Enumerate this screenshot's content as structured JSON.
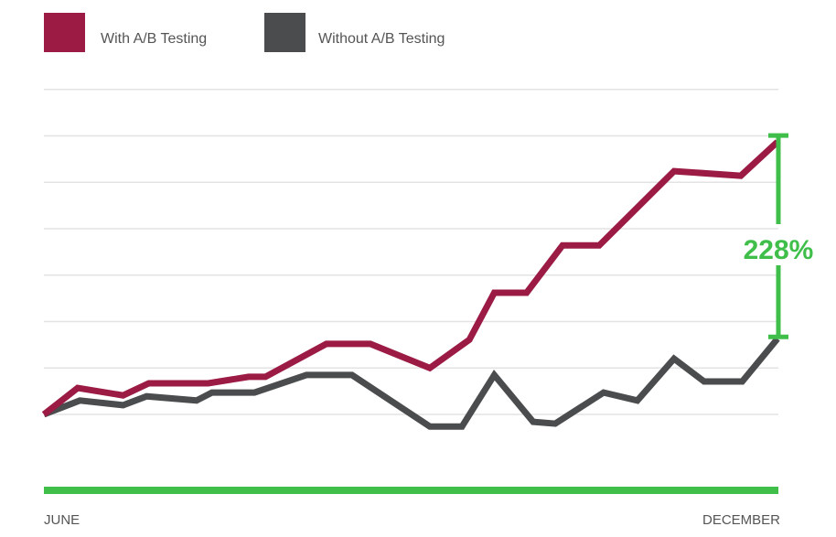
{
  "chart_data": {
    "type": "line",
    "title": "",
    "xlabel": "",
    "ylabel": "",
    "x_tick_labels": [
      "JUNE",
      "DECEMBER"
    ],
    "xlim": [
      0,
      100
    ],
    "ylim": [
      -0.65,
      8
    ],
    "gridlines": [
      1,
      2,
      3,
      4,
      5,
      6,
      7,
      8
    ],
    "grid": true,
    "legend_position": "top-left",
    "series": [
      {
        "name": "With A/B Testing",
        "color": "#9b1b45",
        "x": [
          0,
          4.6,
          10.8,
          14.3,
          22.4,
          27.9,
          30.2,
          38.5,
          44.5,
          52.6,
          58,
          61.4,
          65.8,
          70.7,
          75.7,
          85.9,
          95,
          100
        ],
        "y": [
          1,
          1.57,
          1.41,
          1.67,
          1.67,
          1.81,
          1.81,
          2.52,
          2.52,
          2.0,
          2.61,
          3.62,
          3.62,
          4.64,
          4.64,
          6.24,
          6.14,
          6.87
        ]
      },
      {
        "name": "Without A/B Testing",
        "color": "#4a4c4e",
        "x": [
          0,
          4.9,
          10.8,
          14,
          20.8,
          22.9,
          28.7,
          35.8,
          42,
          52.6,
          57,
          61.4,
          66.7,
          69.7,
          76.3,
          80.9,
          85.9,
          90,
          95.2,
          100
        ],
        "y": [
          1,
          1.3,
          1.2,
          1.39,
          1.3,
          1.47,
          1.47,
          1.85,
          1.85,
          0.74,
          0.74,
          1.85,
          0.84,
          0.8,
          1.47,
          1.3,
          2.2,
          1.71,
          1.71,
          2.63
        ]
      }
    ],
    "annotation": {
      "text": "228%",
      "color": "#3fbf4a"
    },
    "baseline_color": "#3fbf4a"
  }
}
